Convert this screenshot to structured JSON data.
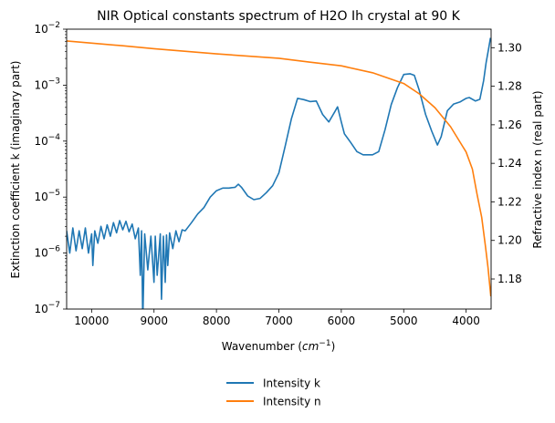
{
  "chart_data": {
    "type": "line",
    "title": "NIR Optical constants spectrum of H2O Ih crystal at 90 K",
    "xlabel": "Wavenumber (cm⁻¹)",
    "ylabel_left": "Extinction coefficient k (imaginary part)",
    "ylabel_right": "Refractive index n (real part)",
    "xlim": [
      10400,
      3600
    ],
    "x_reversed": true,
    "ylim_left": [
      1e-07,
      0.01
    ],
    "yscale_left": "log",
    "ylim_right": [
      1.1644,
      1.3096
    ],
    "grid": false,
    "legend_placement": "bottom-center, below plot",
    "x_ticks": [
      "10000",
      "9000",
      "8000",
      "7000",
      "6000",
      "5000",
      "4000"
    ],
    "y_left_ticks": [
      {
        "base": "10",
        "exp": "−2"
      },
      {
        "base": "10",
        "exp": "−3"
      },
      {
        "base": "10",
        "exp": "−4"
      },
      {
        "base": "10",
        "exp": "−5"
      },
      {
        "base": "10",
        "exp": "−6"
      },
      {
        "base": "10",
        "exp": "−7"
      }
    ],
    "y_right_ticks": [
      "1.18",
      "1.20",
      "1.22",
      "1.24",
      "1.26",
      "1.28",
      "1.30"
    ],
    "series": [
      {
        "name": "Intensity k",
        "axis": "left",
        "color": "#1f77b4",
        "points": [
          [
            10400,
            2.5e-06
          ],
          [
            10350,
            1e-06
          ],
          [
            10300,
            2.8e-06
          ],
          [
            10250,
            1.1e-06
          ],
          [
            10200,
            2.5e-06
          ],
          [
            10150,
            1.2e-06
          ],
          [
            10100,
            2.8e-06
          ],
          [
            10050,
            1e-06
          ],
          [
            10000,
            2.2e-06
          ],
          [
            9980,
            6e-07
          ],
          [
            9950,
            2.5e-06
          ],
          [
            9900,
            1.5e-06
          ],
          [
            9850,
            3e-06
          ],
          [
            9800,
            1.8e-06
          ],
          [
            9750,
            3.2e-06
          ],
          [
            9700,
            2e-06
          ],
          [
            9650,
            3.5e-06
          ],
          [
            9600,
            2.3e-06
          ],
          [
            9550,
            3.8e-06
          ],
          [
            9500,
            2.6e-06
          ],
          [
            9450,
            3.7e-06
          ],
          [
            9400,
            2.4e-06
          ],
          [
            9350,
            3.3e-06
          ],
          [
            9300,
            1.8e-06
          ],
          [
            9250,
            2.8e-06
          ],
          [
            9220,
            4e-07
          ],
          [
            9200,
            2.5e-06
          ],
          [
            9180,
            6e-08
          ],
          [
            9150,
            2.2e-06
          ],
          [
            9100,
            5e-07
          ],
          [
            9050,
            2e-06
          ],
          [
            9000,
            3e-07
          ],
          [
            8980,
            2e-06
          ],
          [
            8950,
            4e-07
          ],
          [
            8900,
            2.2e-06
          ],
          [
            8880,
            1.5e-07
          ],
          [
            8850,
            2e-06
          ],
          [
            8820,
            3e-07
          ],
          [
            8800,
            2.1e-06
          ],
          [
            8780,
            6e-07
          ],
          [
            8750,
            2.3e-06
          ],
          [
            8700,
            1.2e-06
          ],
          [
            8650,
            2.5e-06
          ],
          [
            8600,
            1.6e-06
          ],
          [
            8550,
            2.6e-06
          ],
          [
            8500,
            2.5e-06
          ],
          [
            8400,
            3.5e-06
          ],
          [
            8300,
            5e-06
          ],
          [
            8200,
            6.5e-06
          ],
          [
            8100,
            1e-05
          ],
          [
            8000,
            1.3e-05
          ],
          [
            7900,
            1.45e-05
          ],
          [
            7800,
            1.45e-05
          ],
          [
            7700,
            1.5e-05
          ],
          [
            7650,
            1.7e-05
          ],
          [
            7600,
            1.5e-05
          ],
          [
            7500,
            1.05e-05
          ],
          [
            7400,
            9e-06
          ],
          [
            7300,
            9.5e-06
          ],
          [
            7200,
            1.2e-05
          ],
          [
            7100,
            1.6e-05
          ],
          [
            7000,
            2.7e-05
          ],
          [
            6900,
            8e-05
          ],
          [
            6800,
            0.00025
          ],
          [
            6700,
            0.00058
          ],
          [
            6600,
            0.00055
          ],
          [
            6500,
            0.00051
          ],
          [
            6400,
            0.00052
          ],
          [
            6300,
            0.0003
          ],
          [
            6200,
            0.00022
          ],
          [
            6100,
            0.00034
          ],
          [
            6060,
            0.00041
          ],
          [
            6000,
            0.00022
          ],
          [
            5950,
            0.000135
          ],
          [
            5850,
            9.5e-05
          ],
          [
            5750,
            6.5e-05
          ],
          [
            5650,
            5.7e-05
          ],
          [
            5500,
            5.7e-05
          ],
          [
            5400,
            6.5e-05
          ],
          [
            5300,
            0.00016
          ],
          [
            5200,
            0.00045
          ],
          [
            5100,
            0.0009
          ],
          [
            5000,
            0.00155
          ],
          [
            4900,
            0.0016
          ],
          [
            4830,
            0.0015
          ],
          [
            4750,
            0.0008
          ],
          [
            4650,
            0.0003
          ],
          [
            4550,
            0.00015
          ],
          [
            4460,
            8.5e-05
          ],
          [
            4400,
            0.00012
          ],
          [
            4300,
            0.00035
          ],
          [
            4200,
            0.00046
          ],
          [
            4100,
            0.0005
          ],
          [
            4000,
            0.00058
          ],
          [
            3950,
            0.0006
          ],
          [
            3850,
            0.00052
          ],
          [
            3780,
            0.00056
          ],
          [
            3720,
            0.0012
          ],
          [
            3680,
            0.0025
          ],
          [
            3640,
            0.0045
          ],
          [
            3610,
            0.007
          ]
        ]
      },
      {
        "name": "Intensity n",
        "axis": "right",
        "color": "#ff7f0e",
        "points": [
          [
            10400,
            1.3035
          ],
          [
            9500,
            1.301
          ],
          [
            9000,
            1.2995
          ],
          [
            8000,
            1.2968
          ],
          [
            7000,
            1.2945
          ],
          [
            6500,
            1.2925
          ],
          [
            6000,
            1.2906
          ],
          [
            5500,
            1.287
          ],
          [
            5000,
            1.2814
          ],
          [
            4750,
            1.276
          ],
          [
            4500,
            1.2689
          ],
          [
            4250,
            1.259
          ],
          [
            4000,
            1.2459
          ],
          [
            3900,
            1.237
          ],
          [
            3825,
            1.224
          ],
          [
            3750,
            1.212
          ],
          [
            3690,
            1.197
          ],
          [
            3650,
            1.186
          ],
          [
            3605,
            1.171
          ]
        ]
      }
    ]
  }
}
